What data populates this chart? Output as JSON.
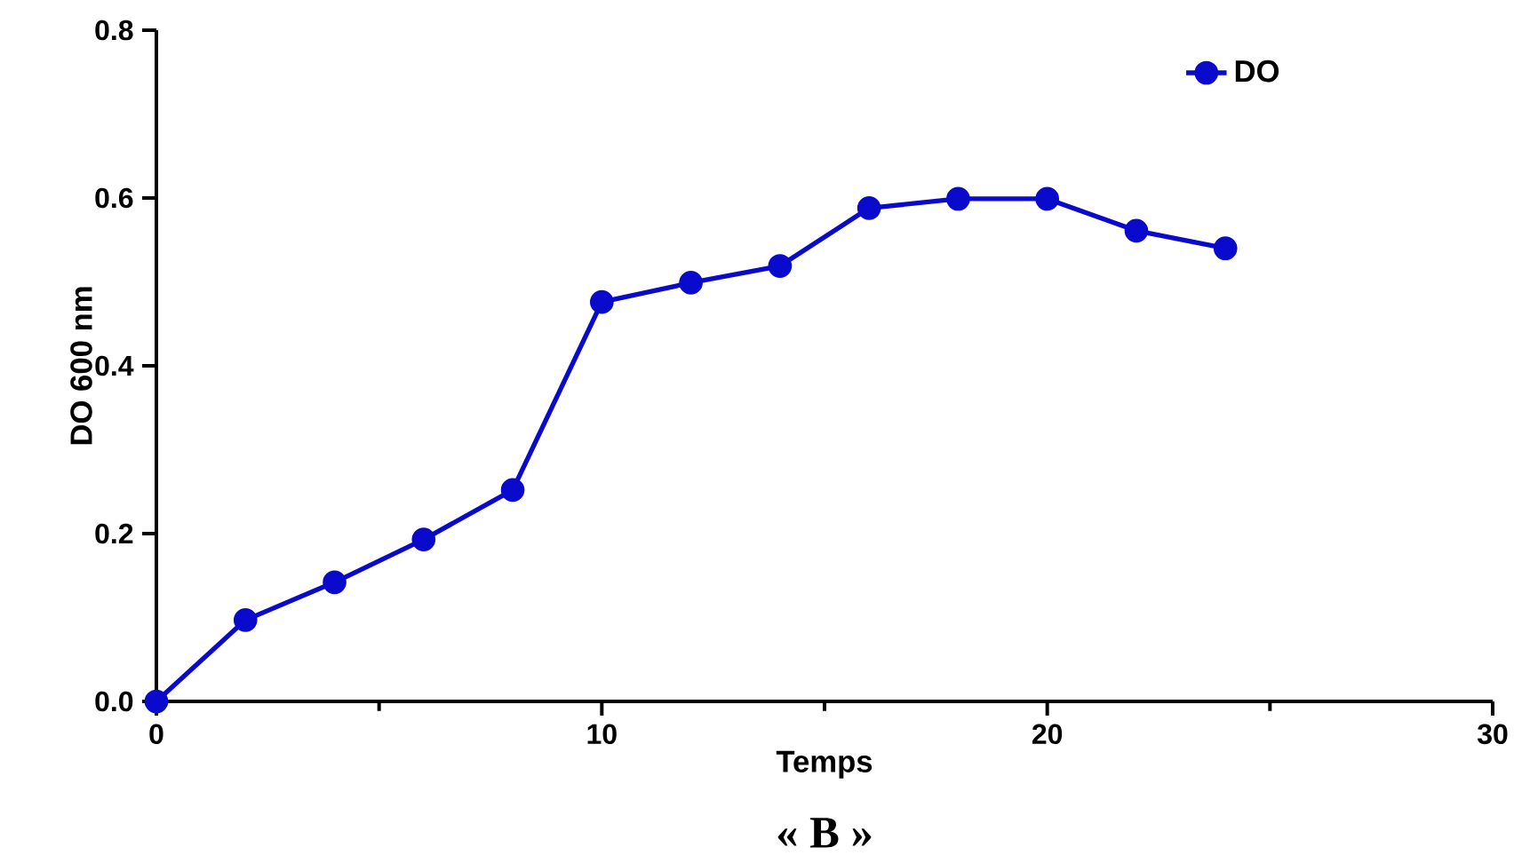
{
  "chart_data": {
    "type": "line",
    "xlabel": "Temps",
    "ylabel": "DO 600 nm",
    "annotations": [
      "« B »"
    ],
    "x": [
      0,
      2,
      4,
      6,
      8,
      10,
      12,
      14,
      16,
      18,
      20,
      22,
      24
    ],
    "series": [
      {
        "name": "DO",
        "color": "#0a0acc",
        "values": [
          0,
          0.097,
          0.142,
          0.193,
          0.252,
          0.476,
          0.499,
          0.519,
          0.588,
          0.599,
          0.599,
          0.561,
          0.54
        ]
      }
    ],
    "xlim": [
      0,
      30
    ],
    "xticks": [
      0,
      10,
      20,
      30
    ],
    "ylim": [
      0,
      0.8
    ],
    "yticks": [
      {
        "value": 0,
        "label": "0.0"
      },
      {
        "value": 0.2,
        "label": "0.2"
      },
      {
        "value": 0.4,
        "label": "0.4"
      },
      {
        "value": 0.6,
        "label": "0.6"
      },
      {
        "value": 0.8,
        "label": "0.8"
      }
    ],
    "legend": "top right",
    "marker": "circle",
    "line_style": "solid",
    "grid": false
  }
}
